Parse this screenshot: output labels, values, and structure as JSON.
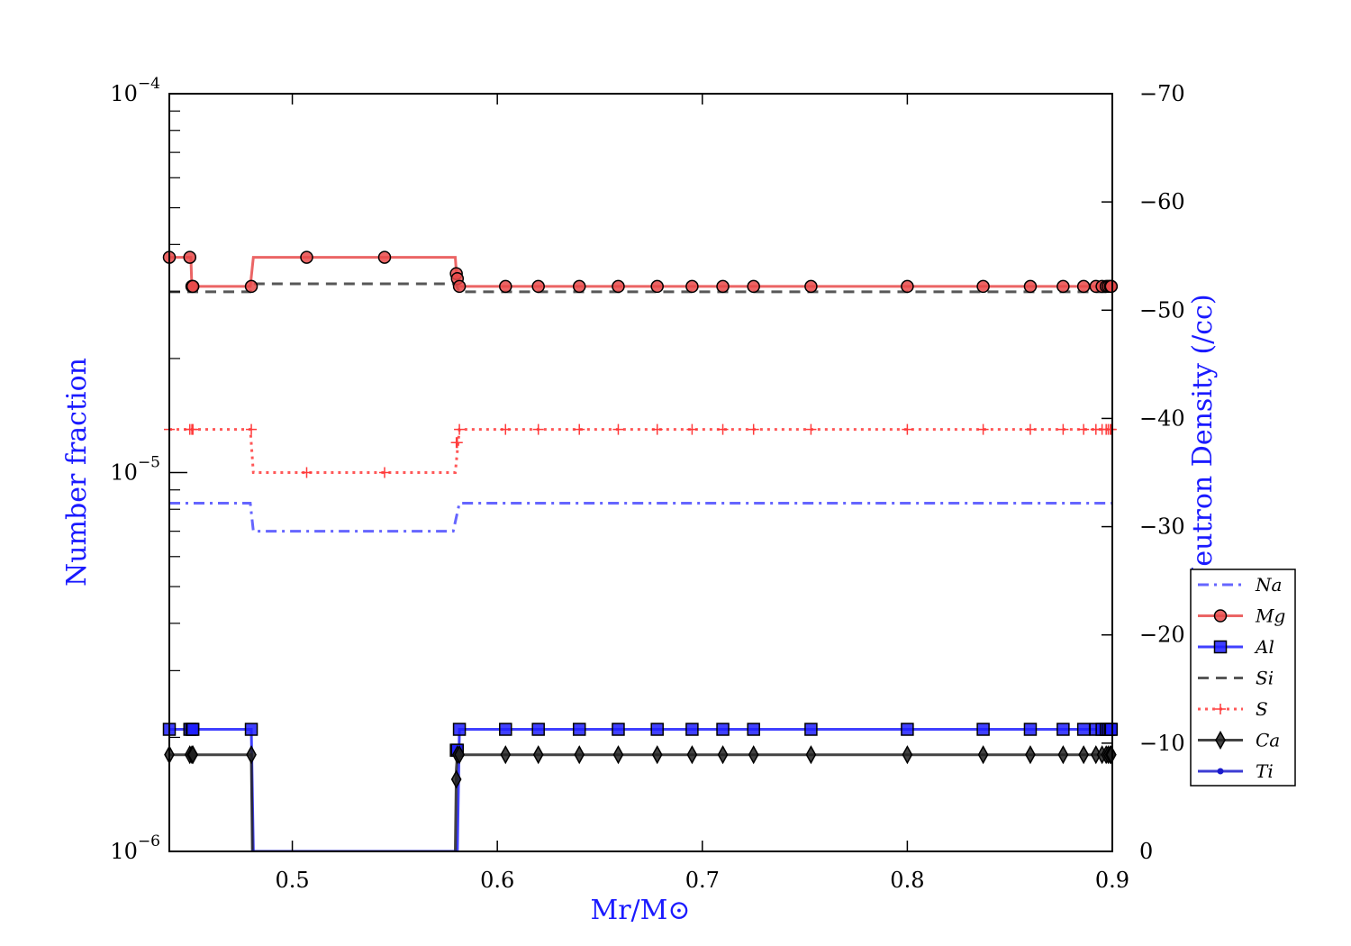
{
  "chart_data": {
    "type": "line",
    "title": "",
    "xlabel": "Mr/M⊙",
    "ylabel": "Number fraction",
    "y2label": "Log Neutron Density (/cc)",
    "xlim": [
      0.44,
      0.9
    ],
    "ylim": [
      1e-06,
      0.0001
    ],
    "yscale": "log",
    "y2lim": [
      0,
      -70
    ],
    "grid": false,
    "legend_position": "right",
    "x_ticks": [
      {
        "value": 0.5,
        "label": "0.5"
      },
      {
        "value": 0.6,
        "label": "0.6"
      },
      {
        "value": 0.7,
        "label": "0.7"
      },
      {
        "value": 0.8,
        "label": "0.8"
      },
      {
        "value": 0.9,
        "label": "0.9"
      }
    ],
    "y_ticks": [
      {
        "value": 1e-06,
        "label_base": "10",
        "label_exp": "−6"
      },
      {
        "value": 1e-05,
        "label_base": "10",
        "label_exp": "−5"
      },
      {
        "value": 0.0001,
        "label_base": "10",
        "label_exp": "−4"
      }
    ],
    "y2_ticks": [
      {
        "value": 0,
        "label": "0"
      },
      {
        "value": -10,
        "label": "−10"
      },
      {
        "value": -20,
        "label": "−20"
      },
      {
        "value": -30,
        "label": "−30"
      },
      {
        "value": -40,
        "label": "−40"
      },
      {
        "value": -50,
        "label": "−50"
      },
      {
        "value": -60,
        "label": "−60"
      },
      {
        "value": -70,
        "label": "−70"
      }
    ],
    "series": [
      {
        "name": "Na",
        "color": "#4a4aff",
        "dash": "dashdot",
        "marker": "none",
        "x": [
          0.44,
          0.4795,
          0.481,
          0.5785,
          0.5815,
          0.9
        ],
        "y": [
          8.3e-06,
          8.3e-06,
          7e-06,
          7e-06,
          8.3e-06,
          8.3e-06
        ]
      },
      {
        "name": "Mg",
        "color": "#e84a4a",
        "dash": "solid",
        "marker": "circle",
        "x": [
          0.44,
          0.4505,
          0.451,
          0.4795,
          0.481,
          0.5795,
          0.5805,
          0.9
        ],
        "y": [
          3.7e-05,
          3.7e-05,
          3.1e-05,
          3.1e-05,
          3.7e-05,
          3.7e-05,
          3.1e-05,
          3.1e-05
        ],
        "marker_x": [
          0.44,
          0.45,
          0.451,
          0.4515,
          0.48,
          0.507,
          0.545,
          0.58,
          0.5805,
          0.5815,
          0.604,
          0.62,
          0.64,
          0.659,
          0.678,
          0.695,
          0.71,
          0.725,
          0.753,
          0.8,
          0.837,
          0.86,
          0.876,
          0.886,
          0.892,
          0.895,
          0.897,
          0.898,
          0.899,
          0.8995
        ],
        "marker_y": [
          3.7e-05,
          3.7e-05,
          3.1e-05,
          3.1e-05,
          3.1e-05,
          3.7e-05,
          3.7e-05,
          3.35e-05,
          3.25e-05,
          3.1e-05,
          3.1e-05,
          3.1e-05,
          3.1e-05,
          3.1e-05,
          3.1e-05,
          3.1e-05,
          3.1e-05,
          3.1e-05,
          3.1e-05,
          3.1e-05,
          3.1e-05,
          3.1e-05,
          3.1e-05,
          3.1e-05,
          3.1e-05,
          3.1e-05,
          3.1e-05,
          3.1e-05,
          3.1e-05,
          3.1e-05
        ]
      },
      {
        "name": "Al",
        "color": "#1f1fff",
        "dash": "solid",
        "marker": "square",
        "x": [
          0.44,
          0.48,
          0.481,
          0.5805,
          0.5815,
          0.9
        ],
        "y": [
          2.1e-06,
          2.1e-06,
          1e-06,
          1e-06,
          2.1e-06,
          2.1e-06
        ],
        "marker_x": [
          0.44,
          0.45,
          0.451,
          0.4515,
          0.48,
          0.58,
          0.5805,
          0.5815,
          0.604,
          0.62,
          0.64,
          0.659,
          0.678,
          0.695,
          0.71,
          0.725,
          0.753,
          0.8,
          0.837,
          0.86,
          0.876,
          0.886,
          0.892,
          0.895,
          0.897,
          0.898,
          0.899,
          0.8995
        ],
        "marker_y": [
          2.1e-06,
          2.1e-06,
          2.1e-06,
          2.1e-06,
          2.1e-06,
          1.85e-06,
          1.85e-06,
          2.1e-06,
          2.1e-06,
          2.1e-06,
          2.1e-06,
          2.1e-06,
          2.1e-06,
          2.1e-06,
          2.1e-06,
          2.1e-06,
          2.1e-06,
          2.1e-06,
          2.1e-06,
          2.1e-06,
          2.1e-06,
          2.1e-06,
          2.1e-06,
          2.1e-06,
          2.1e-06,
          2.1e-06,
          2.1e-06,
          2.1e-06
        ]
      },
      {
        "name": "Si",
        "color": "#3a3a3a",
        "dash": "dashed",
        "marker": "none",
        "x": [
          0.44,
          0.4795,
          0.481,
          0.5795,
          0.5815,
          0.9
        ],
        "y": [
          3e-05,
          3e-05,
          3.15e-05,
          3.15e-05,
          3e-05,
          3e-05
        ]
      },
      {
        "name": "S",
        "color": "#ff3a3a",
        "dash": "dotted",
        "marker": "plus",
        "x": [
          0.44,
          0.4795,
          0.481,
          0.5795,
          0.5815,
          0.9
        ],
        "y": [
          1.3e-05,
          1.3e-05,
          1e-05,
          1e-05,
          1.3e-05,
          1.3e-05
        ],
        "marker_x": [
          0.44,
          0.45,
          0.451,
          0.4515,
          0.48,
          0.507,
          0.545,
          0.58,
          0.5805,
          0.5815,
          0.604,
          0.62,
          0.64,
          0.659,
          0.678,
          0.695,
          0.71,
          0.725,
          0.753,
          0.8,
          0.837,
          0.86,
          0.876,
          0.886,
          0.892,
          0.895,
          0.897,
          0.898,
          0.899,
          0.8995
        ],
        "marker_y": [
          1.3e-05,
          1.3e-05,
          1.3e-05,
          1.3e-05,
          1.3e-05,
          1e-05,
          1e-05,
          1.2e-05,
          1.2e-05,
          1.3e-05,
          1.3e-05,
          1.3e-05,
          1.3e-05,
          1.3e-05,
          1.3e-05,
          1.3e-05,
          1.3e-05,
          1.3e-05,
          1.3e-05,
          1.3e-05,
          1.3e-05,
          1.3e-05,
          1.3e-05,
          1.3e-05,
          1.3e-05,
          1.3e-05,
          1.3e-05,
          1.3e-05,
          1.3e-05,
          1.3e-05
        ]
      },
      {
        "name": "Ca",
        "color": "#222222",
        "dash": "solid",
        "marker": "diamond",
        "x": [
          0.44,
          0.48,
          0.4805,
          0.5795,
          0.58,
          0.5805,
          0.5815,
          0.9
        ],
        "y": [
          1.8e-06,
          1.8e-06,
          1e-06,
          1e-06,
          1.65e-06,
          1.8e-06,
          1.8e-06,
          1.8e-06
        ],
        "marker_x": [
          0.44,
          0.45,
          0.451,
          0.4515,
          0.48,
          0.58,
          0.5805,
          0.5815,
          0.604,
          0.62,
          0.64,
          0.659,
          0.678,
          0.695,
          0.71,
          0.725,
          0.753,
          0.8,
          0.837,
          0.86,
          0.876,
          0.886,
          0.892,
          0.895,
          0.897,
          0.898,
          0.899,
          0.8995
        ],
        "marker_y": [
          1.8e-06,
          1.8e-06,
          1.8e-06,
          1.8e-06,
          1.8e-06,
          1.55e-06,
          1.8e-06,
          1.8e-06,
          1.8e-06,
          1.8e-06,
          1.8e-06,
          1.8e-06,
          1.8e-06,
          1.8e-06,
          1.8e-06,
          1.8e-06,
          1.8e-06,
          1.8e-06,
          1.8e-06,
          1.8e-06,
          1.8e-06,
          1.8e-06,
          1.8e-06,
          1.8e-06,
          1.8e-06,
          1.8e-06,
          1.8e-06,
          1.8e-06
        ]
      },
      {
        "name": "Ti",
        "color": "#1a1acc",
        "dash": "solid",
        "marker": "dot",
        "x": [
          0.48,
          0.4805,
          0.5795,
          0.58
        ],
        "y": [
          1e-06,
          1e-06,
          1e-06,
          1e-06
        ]
      }
    ]
  }
}
